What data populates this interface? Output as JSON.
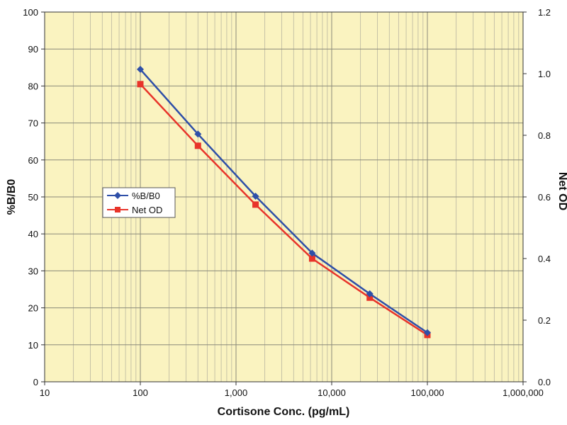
{
  "chart_data": {
    "type": "line",
    "x_scale": "log",
    "xlabel": "Cortisone Conc. (pg/mL)",
    "ylabel_left": "%B/B0",
    "ylabel_right": "Net OD",
    "xlim": [
      10,
      1000000
    ],
    "ylim_left": [
      0,
      100
    ],
    "ylim_right": [
      0,
      1.2
    ],
    "x_ticks": [
      10,
      100,
      1000,
      10000,
      100000,
      1000000
    ],
    "x_tick_labels": [
      "10",
      "100",
      "1,000",
      "10,000",
      "100,000",
      "1,000,000"
    ],
    "y_left_ticks": [
      0,
      10,
      20,
      30,
      40,
      50,
      60,
      70,
      80,
      90,
      100
    ],
    "y_left_tick_labels": [
      "0",
      "10",
      "20",
      "30",
      "40",
      "50",
      "60",
      "70",
      "80",
      "90",
      "100"
    ],
    "y_right_ticks": [
      0,
      0.2,
      0.4,
      0.6,
      0.8,
      1.0,
      1.2
    ],
    "y_right_tick_labels": [
      "0.0",
      "0.2",
      "0.4",
      "0.6",
      "0.8",
      "1.0",
      "1.2"
    ],
    "grid": true,
    "legend_position": "left-middle",
    "background_color": "#FAF3C0",
    "series": [
      {
        "name": "%B/B0",
        "axis": "left",
        "color": "#2E4FA8",
        "marker": "diamond",
        "x": [
          100,
          400,
          1600,
          6250,
          25000,
          100000
        ],
        "y": [
          84.5,
          67,
          50.2,
          34.8,
          23.8,
          13.3
        ]
      },
      {
        "name": "Net OD",
        "axis": "right",
        "color": "#E8342A",
        "marker": "square",
        "x": [
          100,
          400,
          1600,
          6250,
          25000,
          100000
        ],
        "y": [
          0.966,
          0.766,
          0.575,
          0.4,
          0.273,
          0.152
        ]
      }
    ]
  }
}
